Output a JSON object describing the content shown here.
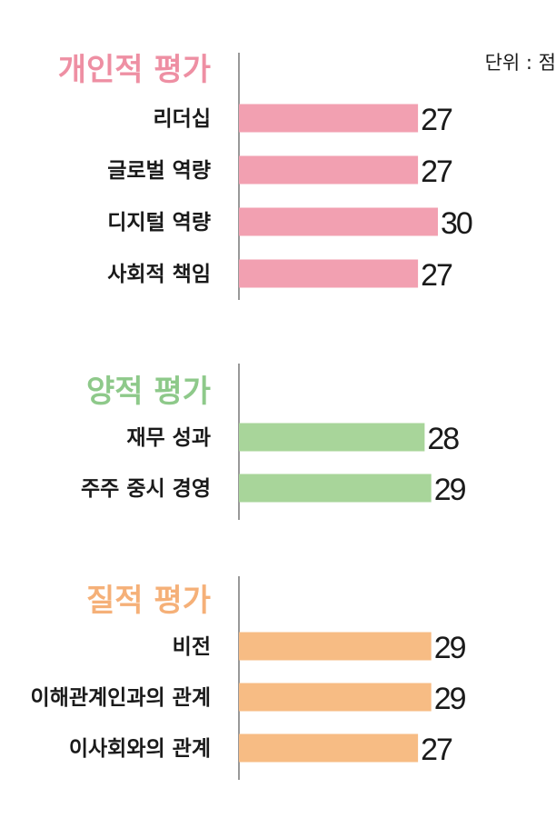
{
  "unit_label": "단위 : 점",
  "chart_data": [
    {
      "type": "bar",
      "orientation": "horizontal",
      "title": "개인적 평가",
      "color": "#f2a0b1",
      "title_color": "#ee8fa3",
      "categories": [
        "리더십",
        "글로벌 역량",
        "디지털 역량",
        "사회적 책임"
      ],
      "values": [
        27,
        27,
        30,
        27
      ]
    },
    {
      "type": "bar",
      "orientation": "horizontal",
      "title": "양적 평가",
      "color": "#a8d59a",
      "title_color": "#8ec98a",
      "categories": [
        "재무 성과",
        "주주 중시 경영"
      ],
      "values": [
        28,
        29
      ]
    },
    {
      "type": "bar",
      "orientation": "horizontal",
      "title": "질적 평가",
      "color": "#f7bc84",
      "title_color": "#f5b078",
      "categories": [
        "비전",
        "이해관계인과의 관계",
        "이사회와의 관계"
      ],
      "values": [
        29,
        29,
        27
      ]
    }
  ]
}
